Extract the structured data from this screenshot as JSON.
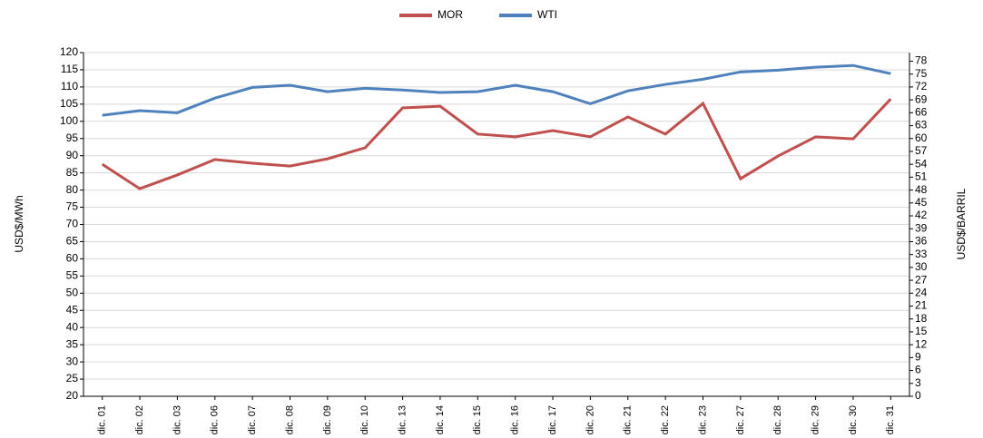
{
  "chart_data": {
    "type": "line",
    "y_label": "USD$/MWh",
    "y2_label": "USD$/BARRIL",
    "categories": [
      "dic. 01",
      "dic. 02",
      "dic. 03",
      "dic. 06",
      "dic. 07",
      "dic. 08",
      "dic. 09",
      "dic. 10",
      "dic. 13",
      "dic. 14",
      "dic. 15",
      "dic. 16",
      "dic. 17",
      "dic. 20",
      "dic. 21",
      "dic. 22",
      "dic. 23",
      "dic. 27",
      "dic. 28",
      "dic. 29",
      "dic. 30",
      "dic. 31"
    ],
    "series": [
      {
        "name": "MOR",
        "color": "#c0504d",
        "values": [
          87.5,
          80.4,
          84.4,
          88.9,
          87.8,
          87.0,
          89.1,
          92.3,
          103.9,
          104.4,
          96.3,
          95.5,
          97.3,
          95.5,
          101.3,
          96.3,
          105.2,
          83.3,
          89.9,
          95.5,
          94.9,
          106.5
        ]
      },
      {
        "name": "WTI",
        "color": "#4f81bd",
        "axis": "y2",
        "values": [
          65.4,
          66.5,
          66.0,
          69.4,
          71.9,
          72.4,
          70.9,
          71.7,
          71.3,
          70.7,
          70.9,
          72.4,
          70.9,
          68.1,
          71.1,
          72.6,
          73.8,
          75.5,
          75.9,
          76.6,
          77.0,
          75.1
        ]
      }
    ],
    "ylim": [
      20,
      120
    ],
    "yticks": [
      20,
      25,
      30,
      35,
      40,
      45,
      50,
      55,
      60,
      65,
      70,
      75,
      80,
      85,
      90,
      95,
      100,
      105,
      110,
      115,
      120
    ],
    "y2lim": [
      0,
      80
    ],
    "y2ticks": [
      0,
      3,
      6,
      9,
      12,
      15,
      18,
      21,
      24,
      27,
      30,
      33,
      36,
      39,
      42,
      45,
      48,
      51,
      54,
      57,
      60,
      63,
      66,
      69,
      72,
      75,
      78
    ],
    "grid": true,
    "legend": "top"
  }
}
